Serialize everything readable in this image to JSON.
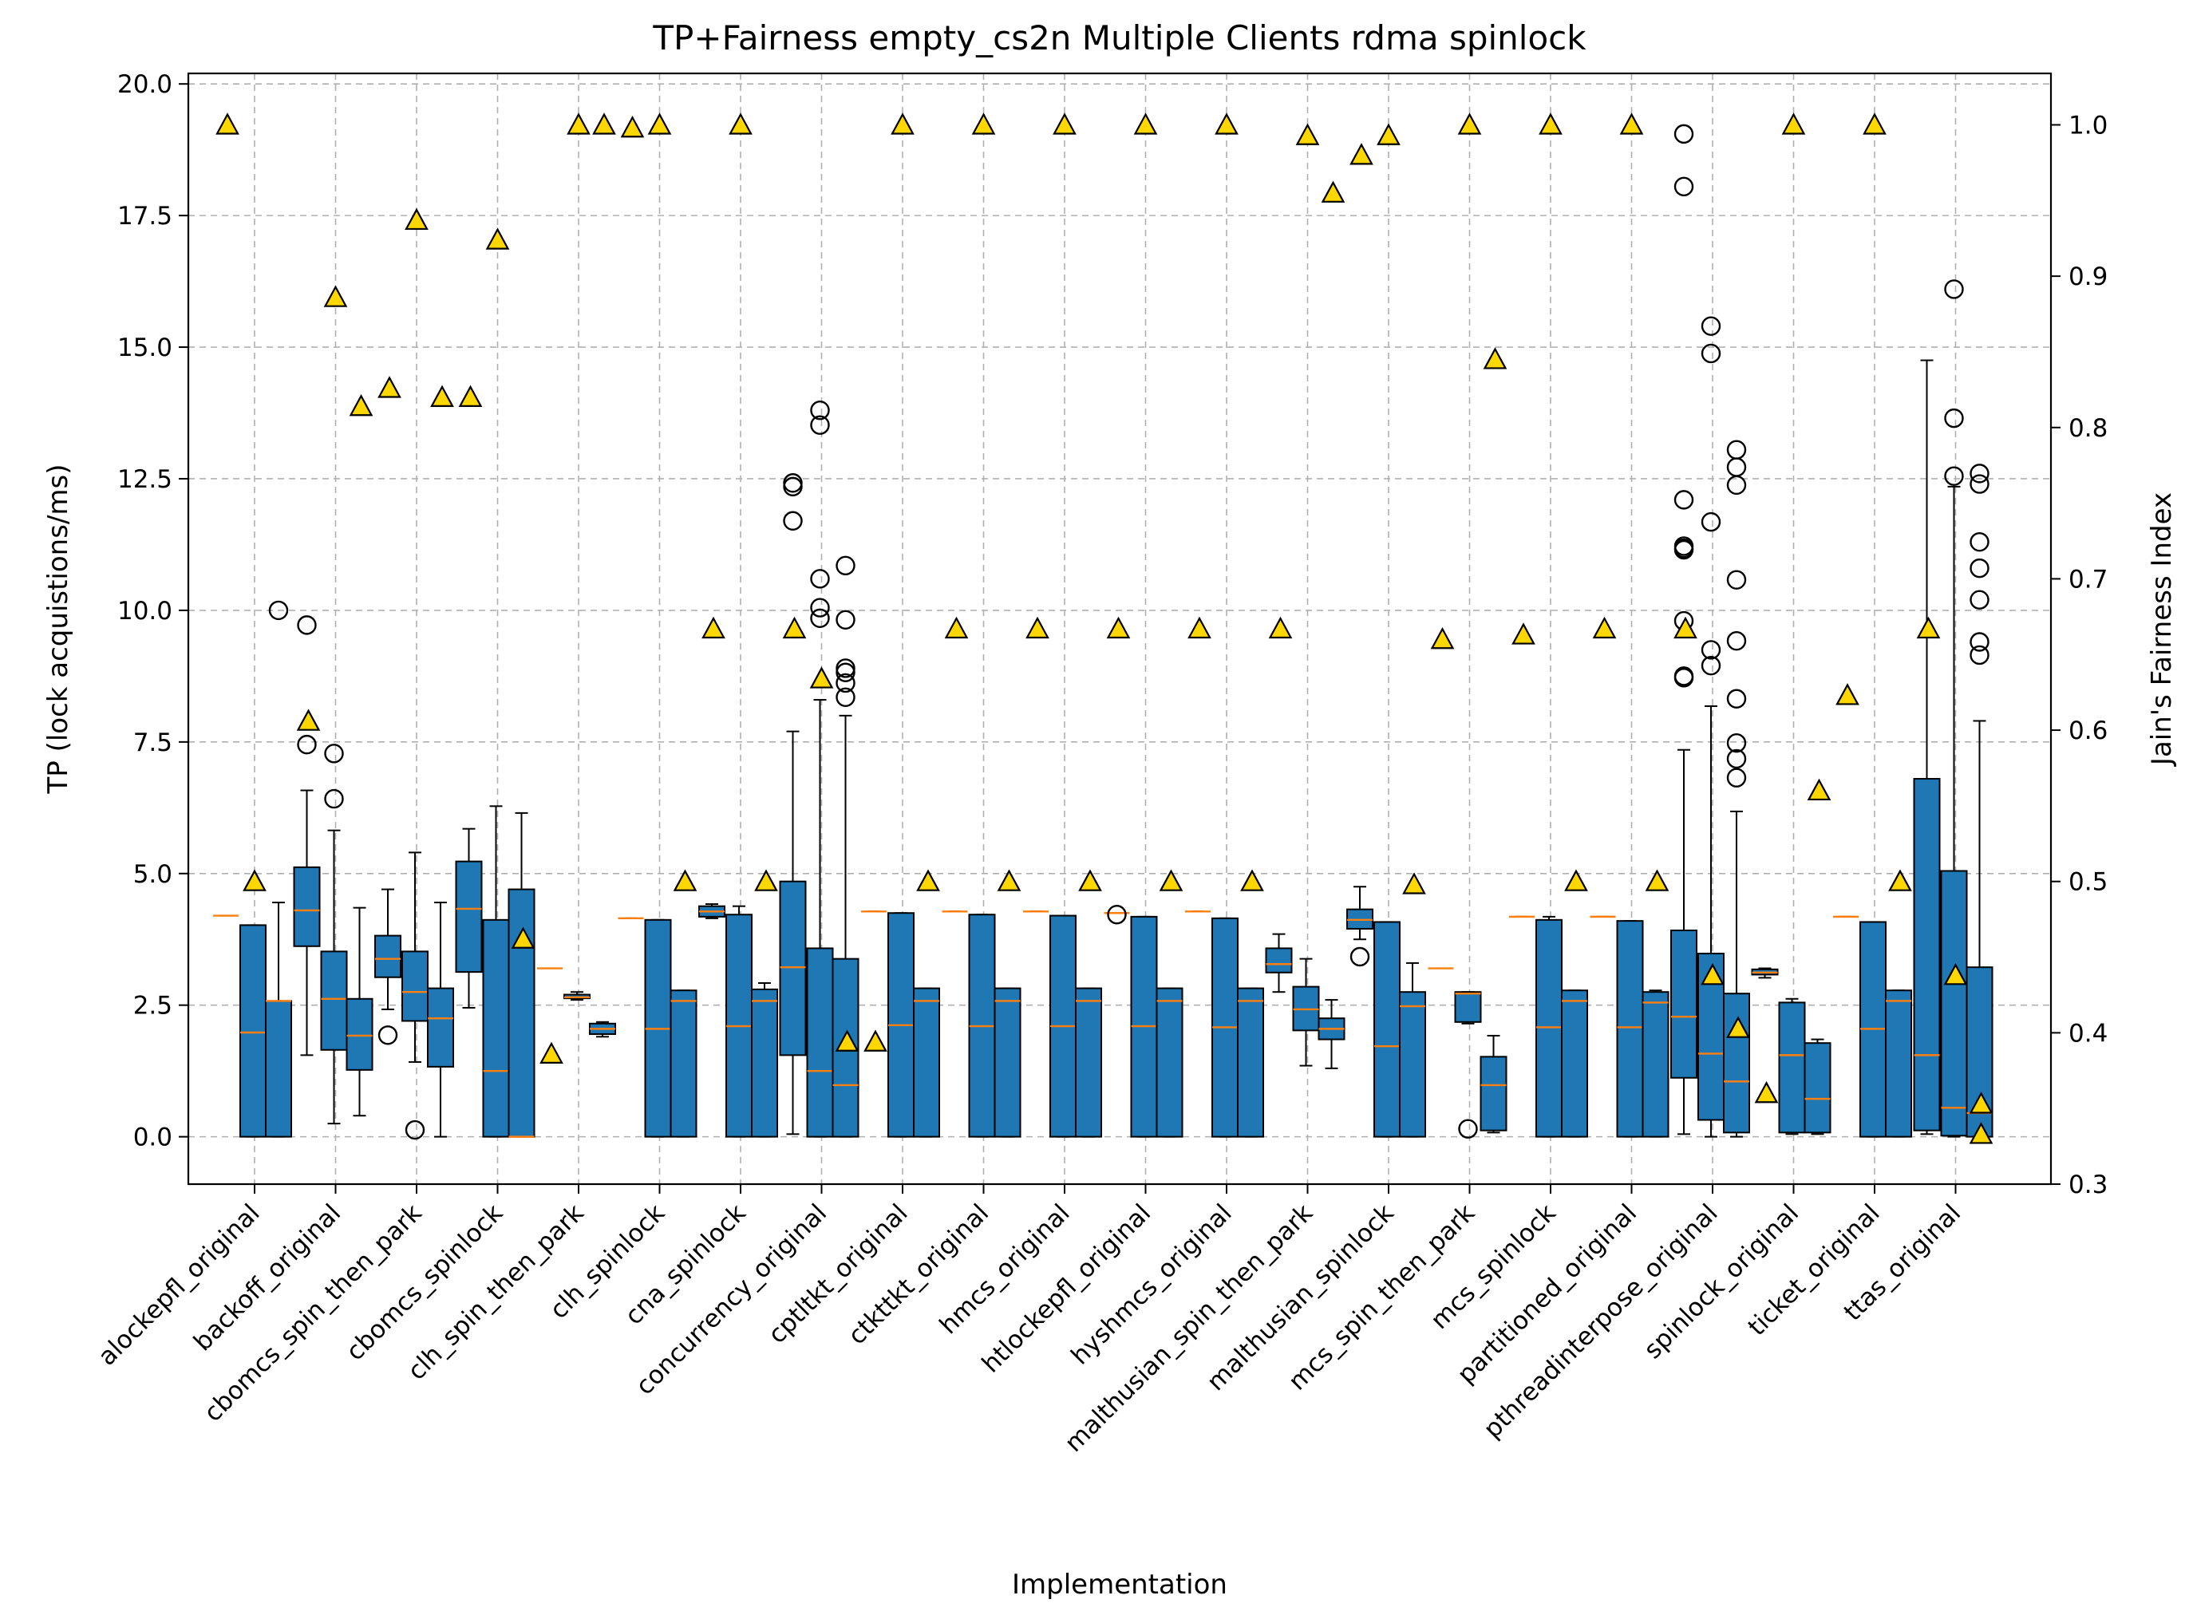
{
  "chart_data": {
    "type": "box",
    "title": "TP+Fairness empty_cs2n Multiple Clients rdma spinlock",
    "xlabel": "Implementation",
    "ylabel": "TP (lock acquistions/ms)",
    "y2label": "Jain's Fairness Index",
    "ylim": [
      -0.9,
      20.2
    ],
    "y2lim": [
      0.3,
      1.034
    ],
    "yticks": [
      "0.0",
      "2.5",
      "5.0",
      "7.5",
      "10.0",
      "12.5",
      "15.0",
      "17.5",
      "20.0"
    ],
    "y2ticks": [
      "0.3",
      "0.4",
      "0.5",
      "0.6",
      "0.7",
      "0.8",
      "0.9",
      "1.0"
    ],
    "grid": true,
    "colors": {
      "box": "#1f77b4",
      "median": "#ff7f0e",
      "fairness_marker": "#ffd700",
      "edge": "#000000"
    },
    "categories": [
      "alockepfl_original",
      "backoff_original",
      "cbomcs_spin_then_park",
      "cbomcs_spinlock",
      "clh_spin_then_park",
      "clh_spinlock",
      "cna_spinlock",
      "concurrency_original",
      "cptltkt_original",
      "ctkttkt_original",
      "hmcs_original",
      "htlockepfl_original",
      "hyshmcs_original",
      "malthusian_spin_then_park",
      "malthusian_spinlock",
      "mcs_spin_then_park",
      "mcs_spinlock",
      "partitioned_original",
      "pthreadinterpose_original",
      "spinlock_original",
      "ticket_original",
      "ttas_original"
    ],
    "series": [
      {
        "name": "",
        "boxes": [
          {
            "category": "alockepfl_original",
            "q1": [
              4.2,
              0.0,
              0.0
            ],
            "med": [
              4.2,
              1.98,
              2.58
            ],
            "q3": [
              4.2,
              4.02,
              2.58
            ],
            "wlo": [
              4.2,
              0.0,
              0.0
            ],
            "whi": [
              4.2,
              4.02,
              4.45
            ],
            "fliers": [
              [],
              [],
              [
                10.0
              ]
            ],
            "fair": [
              1.0,
              0.5,
              null
            ]
          },
          {
            "category": "backoff_original",
            "q1": [
              3.62,
              1.65,
              1.27
            ],
            "med": [
              4.3,
              2.62,
              1.92
            ],
            "q3": [
              5.12,
              3.52,
              2.62
            ],
            "wlo": [
              1.55,
              0.25,
              0.4
            ],
            "whi": [
              6.58,
              5.82,
              4.35
            ],
            "fliers": [
              [
                9.72,
                7.45
              ],
              [
                7.28,
                6.42
              ],
              []
            ],
            "fair": [
              0.606,
              0.886,
              0.814
            ]
          },
          {
            "category": "cbomcs_spin_then_park",
            "q1": [
              3.03,
              2.2,
              1.33
            ],
            "med": [
              3.38,
              2.75,
              2.25
            ],
            "q3": [
              3.82,
              3.52,
              2.82
            ],
            "wlo": [
              2.42,
              1.42,
              0.0
            ],
            "whi": [
              4.7,
              5.4,
              4.45
            ],
            "fliers": [
              [
                1.93
              ],
              [
                0.13
              ],
              []
            ],
            "fair": [
              0.826,
              0.937,
              0.82
            ]
          },
          {
            "category": "cbomcs_spinlock",
            "q1": [
              3.13,
              0.0,
              0.0
            ],
            "med": [
              4.33,
              1.25,
              0.0
            ],
            "q3": [
              5.23,
              4.12,
              4.7
            ],
            "wlo": [
              2.45,
              0.0,
              0.0
            ],
            "whi": [
              5.85,
              6.28,
              6.15
            ],
            "fliers": [
              [],
              [],
              []
            ],
            "fair": [
              0.82,
              0.924,
              0.462
            ]
          },
          {
            "category": "clh_spin_then_park",
            "q1": [
              3.2,
              2.63,
              1.95
            ],
            "med": [
              3.2,
              2.65,
              2.05
            ],
            "q3": [
              3.2,
              2.7,
              2.15
            ],
            "wlo": [
              3.2,
              2.6,
              1.9
            ],
            "whi": [
              3.2,
              2.75,
              2.18
            ],
            "fliers": [
              [],
              [],
              []
            ],
            "fair": [
              0.386,
              1.0,
              1.0
            ]
          },
          {
            "category": "clh_spinlock",
            "q1": [
              4.15,
              0.0,
              0.0
            ],
            "med": [
              4.15,
              2.05,
              2.58
            ],
            "q3": [
              4.15,
              4.12,
              2.78
            ],
            "wlo": [
              4.15,
              0.0,
              0.0
            ],
            "whi": [
              4.15,
              4.12,
              2.78
            ],
            "fliers": [
              [],
              [],
              []
            ],
            "fair": [
              0.998,
              1.0,
              0.5
            ]
          },
          {
            "category": "cna_spinlock",
            "q1": [
              4.18,
              0.0,
              0.0
            ],
            "med": [
              4.28,
              2.1,
              2.58
            ],
            "q3": [
              4.38,
              4.22,
              2.8
            ],
            "wlo": [
              4.15,
              0.0,
              0.0
            ],
            "whi": [
              4.42,
              4.38,
              2.92
            ],
            "fliers": [
              [],
              [],
              []
            ],
            "fair": [
              0.667,
              1.0,
              0.5
            ]
          },
          {
            "category": "concurrency_original",
            "q1": [
              1.55,
              0.0,
              0.0
            ],
            "med": [
              3.22,
              1.25,
              0.98
            ],
            "q3": [
              4.85,
              3.58,
              3.38
            ],
            "wlo": [
              0.05,
              0.0,
              0.0
            ],
            "whi": [
              7.7,
              8.3,
              8.0
            ],
            "fliers": [
              [
                12.42,
                12.35,
                11.7
              ],
              [
                13.8,
                13.52,
                10.6,
                10.05,
                9.85
              ],
              [
                10.85,
                9.82,
                8.9,
                8.82,
                8.62,
                8.35
              ]
            ],
            "fair": [
              0.667,
              0.634,
              0.394
            ]
          },
          {
            "category": "cptltkt_original",
            "q1": [
              4.28,
              0.0,
              0.0
            ],
            "med": [
              4.28,
              2.12,
              2.58
            ],
            "q3": [
              4.28,
              4.25,
              2.82
            ],
            "wlo": [
              4.28,
              0.0,
              0.0
            ],
            "whi": [
              4.28,
              4.25,
              2.82
            ],
            "fliers": [
              [],
              [],
              []
            ],
            "fair": [
              0.394,
              1.0,
              0.5
            ]
          },
          {
            "category": "ctkttkt_original",
            "q1": [
              4.28,
              0.0,
              0.0
            ],
            "med": [
              4.28,
              2.1,
              2.58
            ],
            "q3": [
              4.28,
              4.22,
              2.82
            ],
            "wlo": [
              4.28,
              0.0,
              0.0
            ],
            "whi": [
              4.28,
              4.22,
              2.82
            ],
            "fliers": [
              [],
              [],
              []
            ],
            "fair": [
              0.667,
              1.0,
              0.5
            ]
          },
          {
            "category": "hmcs_original",
            "q1": [
              4.28,
              0.0,
              0.0
            ],
            "med": [
              4.28,
              2.1,
              2.58
            ],
            "q3": [
              4.28,
              4.2,
              2.82
            ],
            "wlo": [
              4.28,
              0.0,
              0.0
            ],
            "whi": [
              4.28,
              4.2,
              2.82
            ],
            "fliers": [
              [],
              [],
              []
            ],
            "fair": [
              0.667,
              1.0,
              0.5
            ]
          },
          {
            "category": "htlockepfl_original",
            "q1": [
              4.25,
              0.0,
              0.0
            ],
            "med": [
              4.25,
              2.1,
              2.58
            ],
            "q3": [
              4.25,
              4.18,
              2.82
            ],
            "wlo": [
              4.25,
              0.0,
              0.0
            ],
            "whi": [
              4.25,
              4.18,
              2.82
            ],
            "fliers": [
              [
                4.22
              ],
              [],
              []
            ],
            "fair": [
              0.667,
              1.0,
              0.5
            ]
          },
          {
            "category": "hyshmcs_original",
            "q1": [
              4.28,
              0.0,
              0.0
            ],
            "med": [
              4.28,
              2.08,
              2.58
            ],
            "q3": [
              4.28,
              4.15,
              2.82
            ],
            "wlo": [
              4.28,
              0.0,
              0.0
            ],
            "whi": [
              4.28,
              4.15,
              2.82
            ],
            "fliers": [
              [],
              [],
              []
            ],
            "fair": [
              0.667,
              1.0,
              0.5
            ]
          },
          {
            "category": "malthusian_spin_then_park",
            "q1": [
              3.12,
              2.02,
              1.85
            ],
            "med": [
              3.28,
              2.42,
              2.05
            ],
            "q3": [
              3.58,
              2.85,
              2.25
            ],
            "wlo": [
              2.75,
              1.35,
              1.3
            ],
            "whi": [
              3.85,
              3.38,
              2.6
            ],
            "fliers": [
              [],
              [],
              []
            ],
            "fair": [
              0.667,
              0.993,
              0.955
            ]
          },
          {
            "category": "malthusian_spinlock",
            "q1": [
              3.95,
              0.0,
              0.0
            ],
            "med": [
              4.12,
              1.72,
              2.48
            ],
            "q3": [
              4.32,
              4.08,
              2.75
            ],
            "wlo": [
              3.75,
              0.0,
              0.0
            ],
            "whi": [
              4.75,
              4.08,
              3.3
            ],
            "fliers": [
              [
                3.42
              ],
              [],
              []
            ],
            "fair": [
              0.98,
              0.993,
              0.498
            ]
          },
          {
            "category": "mcs_spin_then_park",
            "q1": [
              3.2,
              2.18,
              0.12
            ],
            "med": [
              3.2,
              2.72,
              0.98
            ],
            "q3": [
              3.2,
              2.75,
              1.52
            ],
            "wlo": [
              3.2,
              2.15,
              0.08
            ],
            "whi": [
              3.2,
              2.75,
              1.92
            ],
            "fliers": [
              [],
              [
                0.15
              ],
              []
            ],
            "fair": [
              0.66,
              1.0,
              0.845
            ]
          },
          {
            "category": "mcs_spinlock",
            "q1": [
              4.18,
              0.0,
              0.0
            ],
            "med": [
              4.18,
              2.08,
              2.58
            ],
            "q3": [
              4.18,
              4.12,
              2.78
            ],
            "wlo": [
              4.18,
              0.0,
              0.0
            ],
            "whi": [
              4.18,
              4.18,
              2.78
            ],
            "fliers": [
              [],
              [],
              []
            ],
            "fair": [
              0.663,
              1.0,
              0.5
            ]
          },
          {
            "category": "partitioned_original",
            "q1": [
              4.18,
              0.0,
              0.0
            ],
            "med": [
              4.18,
              2.08,
              2.55
            ],
            "q3": [
              4.18,
              4.1,
              2.75
            ],
            "wlo": [
              4.18,
              0.0,
              0.0
            ],
            "whi": [
              4.18,
              4.1,
              2.78
            ],
            "fliers": [
              [],
              [],
              []
            ],
            "fair": [
              0.667,
              1.0,
              0.5
            ]
          },
          {
            "category": "pthreadinterpose_original",
            "q1": [
              1.12,
              0.32,
              0.08
            ],
            "med": [
              2.28,
              1.58,
              1.05
            ],
            "q3": [
              3.92,
              3.48,
              2.72
            ],
            "wlo": [
              0.05,
              0.0,
              0.0
            ],
            "whi": [
              7.35,
              8.18,
              6.18
            ],
            "fliers": [
              [
                19.05,
                18.05,
                12.1,
                11.22,
                11.18,
                11.15,
                9.8,
                8.75,
                8.72
              ],
              [
                15.4,
                14.88,
                11.68,
                9.25,
                8.95
              ],
              [
                13.05,
                12.72,
                12.38,
                10.58,
                9.42,
                8.32,
                7.48,
                7.18,
                6.82
              ]
            ],
            "fair": [
              0.667,
              0.438,
              0.403
            ]
          },
          {
            "category": "spinlock_original",
            "q1": [
              3.08,
              0.08,
              0.08
            ],
            "med": [
              3.12,
              1.55,
              0.72
            ],
            "q3": [
              3.18,
              2.55,
              1.78
            ],
            "wlo": [
              3.02,
              0.05,
              0.05
            ],
            "whi": [
              3.2,
              2.62,
              1.85
            ],
            "fliers": [
              [],
              [],
              []
            ],
            "fair": [
              0.36,
              1.0,
              0.56
            ]
          },
          {
            "category": "ticket_original",
            "q1": [
              4.18,
              0.0,
              0.0
            ],
            "med": [
              4.18,
              2.05,
              2.58
            ],
            "q3": [
              4.18,
              4.08,
              2.78
            ],
            "wlo": [
              4.18,
              0.0,
              0.0
            ],
            "whi": [
              4.18,
              4.08,
              2.78
            ],
            "fliers": [
              [],
              [],
              []
            ],
            "fair": [
              0.623,
              1.0,
              0.5
            ]
          },
          {
            "category": "ttas_original",
            "q1": [
              0.12,
              0.02,
              0.0
            ],
            "med": [
              1.55,
              0.55,
              0.45
            ],
            "q3": [
              6.8,
              5.05,
              3.22
            ],
            "wlo": [
              0.05,
              0.0,
              0.0
            ],
            "whi": [
              14.75,
              12.35,
              7.9
            ],
            "fliers": [
              [],
              [
                16.1,
                13.65,
                12.55
              ],
              [
                12.6,
                12.4,
                11.3,
                10.8,
                10.2,
                9.4,
                9.15
              ]
            ],
            "fair": [
              0.667,
              0.438,
              0.353
            ]
          }
        ],
        "extra_fair": [
          0.333
        ]
      }
    ]
  }
}
